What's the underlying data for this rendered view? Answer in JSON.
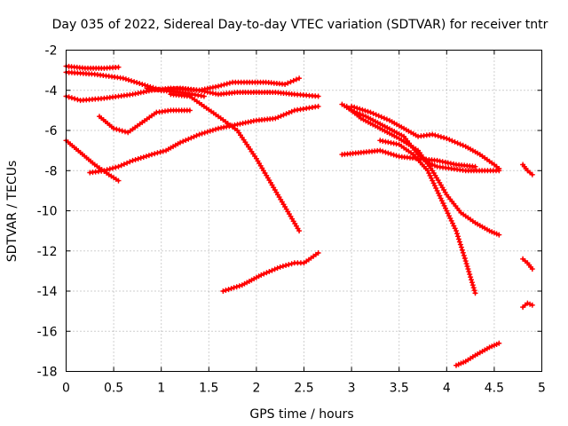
{
  "chart_data": {
    "type": "scatter",
    "title": "Day 035 of 2022, Sidereal Day-to-day VTEC variation (SDTVAR) for receiver tntr",
    "xlabel": "GPS time / hours",
    "ylabel": "SDTVAR / TECUs",
    "xlim": [
      0,
      5
    ],
    "ylim": [
      -18,
      -2
    ],
    "xticks": [
      0,
      0.5,
      1,
      1.5,
      2,
      2.5,
      3,
      3.5,
      4,
      4.5,
      5
    ],
    "xtick_labels": [
      "0",
      "0.5",
      "1",
      "1.5",
      "2",
      "2.5",
      "3",
      "3.5",
      "4",
      "4.5",
      "5"
    ],
    "yticks": [
      -18,
      -16,
      -14,
      -12,
      -10,
      -8,
      -6,
      -4,
      -2
    ],
    "ytick_labels": [
      "-18",
      "-16",
      "-14",
      "-12",
      "-10",
      "-8",
      "-6",
      "-4",
      "-2"
    ],
    "grid": true,
    "marker": "plus",
    "color": "#ff0000",
    "series": [
      {
        "name": "s1",
        "points": [
          [
            0.0,
            -2.8
          ],
          [
            0.2,
            -2.9
          ],
          [
            0.4,
            -2.9
          ],
          [
            0.55,
            -2.85
          ]
        ]
      },
      {
        "name": "s2",
        "points": [
          [
            0.0,
            -3.1
          ],
          [
            0.3,
            -3.2
          ],
          [
            0.6,
            -3.4
          ],
          [
            0.8,
            -3.7
          ],
          [
            1.0,
            -4.0
          ],
          [
            1.2,
            -4.1
          ],
          [
            1.45,
            -4.3
          ]
        ]
      },
      {
        "name": "s3",
        "points": [
          [
            0.0,
            -4.3
          ],
          [
            0.15,
            -4.5
          ],
          [
            0.4,
            -4.4
          ],
          [
            0.7,
            -4.2
          ],
          [
            0.9,
            -4.0
          ],
          [
            1.1,
            -3.9
          ],
          [
            1.4,
            -4.0
          ],
          [
            1.6,
            -4.2
          ],
          [
            1.8,
            -4.1
          ],
          [
            2.0,
            -4.1
          ],
          [
            2.2,
            -4.1
          ],
          [
            2.4,
            -4.2
          ],
          [
            2.65,
            -4.3
          ]
        ]
      },
      {
        "name": "s4",
        "points": [
          [
            0.85,
            -3.9
          ],
          [
            1.0,
            -4.0
          ],
          [
            1.2,
            -3.9
          ],
          [
            1.4,
            -4.0
          ],
          [
            1.6,
            -3.8
          ],
          [
            1.75,
            -3.6
          ],
          [
            1.9,
            -3.6
          ],
          [
            2.1,
            -3.6
          ],
          [
            2.3,
            -3.7
          ],
          [
            2.45,
            -3.4
          ]
        ]
      },
      {
        "name": "s5",
        "points": [
          [
            1.1,
            -4.2
          ],
          [
            1.3,
            -4.3
          ],
          [
            1.45,
            -4.8
          ],
          [
            1.6,
            -5.3
          ],
          [
            1.8,
            -6.0
          ],
          [
            2.0,
            -7.4
          ],
          [
            2.15,
            -8.6
          ],
          [
            2.3,
            -9.8
          ],
          [
            2.45,
            -11.0
          ]
        ]
      },
      {
        "name": "s6",
        "points": [
          [
            0.35,
            -5.3
          ],
          [
            0.5,
            -5.9
          ],
          [
            0.65,
            -6.1
          ],
          [
            0.8,
            -5.6
          ],
          [
            0.95,
            -5.1
          ],
          [
            1.1,
            -5.0
          ],
          [
            1.3,
            -5.0
          ]
        ]
      },
      {
        "name": "s7",
        "points": [
          [
            0.25,
            -8.1
          ],
          [
            0.4,
            -8.0
          ],
          [
            0.55,
            -7.8
          ],
          [
            0.7,
            -7.5
          ],
          [
            0.9,
            -7.2
          ],
          [
            1.05,
            -7.0
          ],
          [
            1.2,
            -6.6
          ],
          [
            1.4,
            -6.2
          ],
          [
            1.6,
            -5.9
          ],
          [
            1.8,
            -5.7
          ],
          [
            2.0,
            -5.5
          ],
          [
            2.2,
            -5.4
          ],
          [
            2.4,
            -5.0
          ],
          [
            2.65,
            -4.8
          ]
        ]
      },
      {
        "name": "s8",
        "points": [
          [
            0.0,
            -6.5
          ],
          [
            0.15,
            -7.1
          ],
          [
            0.3,
            -7.7
          ],
          [
            0.45,
            -8.2
          ],
          [
            0.55,
            -8.5
          ]
        ]
      },
      {
        "name": "s9",
        "points": [
          [
            1.65,
            -14.0
          ],
          [
            1.85,
            -13.7
          ],
          [
            2.05,
            -13.2
          ],
          [
            2.25,
            -12.8
          ],
          [
            2.4,
            -12.6
          ],
          [
            2.5,
            -12.6
          ],
          [
            2.65,
            -12.1
          ]
        ]
      },
      {
        "name": "s10",
        "points": [
          [
            2.9,
            -4.7
          ],
          [
            3.0,
            -5.0
          ],
          [
            3.15,
            -5.3
          ],
          [
            3.35,
            -5.8
          ],
          [
            3.55,
            -6.3
          ],
          [
            3.7,
            -7.2
          ],
          [
            3.8,
            -7.6
          ],
          [
            3.9,
            -7.8
          ],
          [
            4.05,
            -7.9
          ],
          [
            4.2,
            -8.0
          ],
          [
            4.4,
            -8.0
          ],
          [
            4.55,
            -8.0
          ]
        ]
      },
      {
        "name": "s11",
        "points": [
          [
            2.95,
            -4.8
          ],
          [
            3.1,
            -5.4
          ],
          [
            3.3,
            -5.9
          ],
          [
            3.5,
            -6.4
          ],
          [
            3.7,
            -7.0
          ],
          [
            3.85,
            -8.0
          ],
          [
            4.0,
            -9.2
          ],
          [
            4.15,
            -10.1
          ],
          [
            4.3,
            -10.6
          ],
          [
            4.45,
            -11.0
          ],
          [
            4.55,
            -11.2
          ]
        ]
      },
      {
        "name": "s12",
        "points": [
          [
            3.0,
            -4.8
          ],
          [
            3.2,
            -5.1
          ],
          [
            3.4,
            -5.5
          ],
          [
            3.55,
            -5.9
          ],
          [
            3.7,
            -6.3
          ],
          [
            3.85,
            -6.2
          ],
          [
            4.0,
            -6.4
          ],
          [
            4.2,
            -6.8
          ],
          [
            4.35,
            -7.2
          ],
          [
            4.5,
            -7.7
          ],
          [
            4.55,
            -7.9
          ]
        ]
      },
      {
        "name": "s13",
        "points": [
          [
            2.9,
            -7.2
          ],
          [
            3.1,
            -7.1
          ],
          [
            3.3,
            -7.0
          ],
          [
            3.5,
            -7.3
          ],
          [
            3.7,
            -7.4
          ],
          [
            3.9,
            -7.5
          ],
          [
            4.1,
            -7.7
          ],
          [
            4.3,
            -7.8
          ]
        ]
      },
      {
        "name": "s14",
        "points": [
          [
            3.3,
            -6.5
          ],
          [
            3.5,
            -6.7
          ],
          [
            3.65,
            -7.2
          ],
          [
            3.8,
            -8.0
          ],
          [
            3.95,
            -9.5
          ],
          [
            4.1,
            -11.0
          ],
          [
            4.2,
            -12.5
          ],
          [
            4.3,
            -14.1
          ]
        ]
      },
      {
        "name": "s15",
        "points": [
          [
            4.1,
            -17.7
          ],
          [
            4.2,
            -17.5
          ],
          [
            4.3,
            -17.2
          ],
          [
            4.45,
            -16.8
          ],
          [
            4.55,
            -16.6
          ]
        ]
      },
      {
        "name": "s16",
        "points": [
          [
            4.8,
            -7.7
          ],
          [
            4.85,
            -8.0
          ],
          [
            4.9,
            -8.2
          ]
        ]
      },
      {
        "name": "s17",
        "points": [
          [
            4.8,
            -12.4
          ],
          [
            4.85,
            -12.6
          ],
          [
            4.9,
            -12.9
          ]
        ]
      },
      {
        "name": "s18",
        "points": [
          [
            4.8,
            -14.8
          ],
          [
            4.85,
            -14.6
          ],
          [
            4.9,
            -14.7
          ]
        ]
      }
    ]
  }
}
